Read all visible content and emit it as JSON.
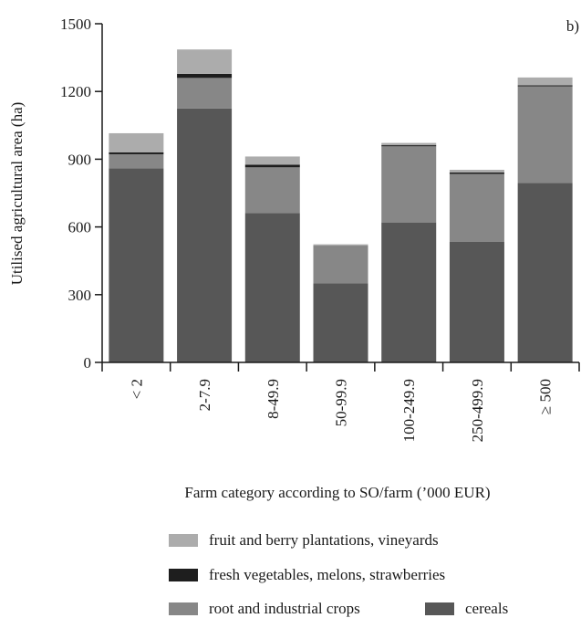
{
  "chart_data": {
    "type": "bar",
    "stacked": true,
    "panel_label": "b)",
    "xlabel": "Farm category according to SO/farm (’000 EUR)",
    "ylabel": "Utilised agricultural area (ha)",
    "ylim": [
      0,
      1500
    ],
    "yticks": [
      "0",
      "300",
      "600",
      "900",
      "1200",
      "1500"
    ],
    "categories": [
      "< 2",
      "2-7.9",
      "8-49.9",
      "50-99.9",
      "100-249.9",
      "250-499.9",
      "≥ 500"
    ],
    "grid": false,
    "legend_position": "bottom",
    "series": [
      {
        "name": "cereals",
        "color": "#575757",
        "values": [
          860,
          1125,
          662,
          350,
          620,
          535,
          795
        ]
      },
      {
        "name": "root and industrial crops",
        "color": "#878787",
        "values": [
          62,
          135,
          202,
          163,
          337,
          300,
          428
        ]
      },
      {
        "name": "fresh vegetables, melons, strawberries",
        "color": "#1e1e1e",
        "values": [
          8,
          18,
          12,
          2,
          5,
          6,
          4
        ]
      },
      {
        "name": "fruit and berry plantations, vineyards",
        "color": "#acacac",
        "values": [
          85,
          108,
          36,
          8,
          10,
          12,
          35
        ]
      }
    ]
  },
  "legend": {
    "items": [
      {
        "series": 3,
        "label": "fruit and berry plantations, vineyards"
      },
      {
        "series": 2,
        "label": "fresh vegetables, melons, strawberries"
      },
      {
        "series": 1,
        "label": "root and industrial crops"
      },
      {
        "series": 0,
        "label": "cereals"
      }
    ]
  }
}
